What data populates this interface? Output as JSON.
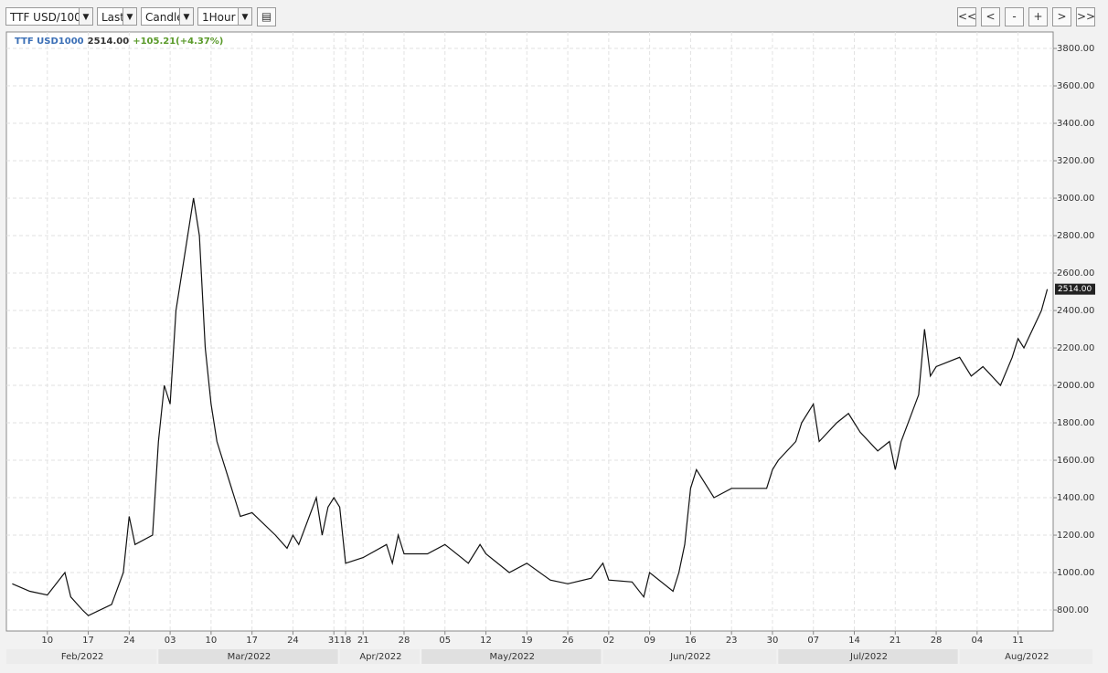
{
  "toolbar": {
    "symbol": "TTF USD/100",
    "price_field": "Last",
    "chart_style": "Candle",
    "interval": "1Hour",
    "buttons": [
      "<<",
      "<",
      "-",
      "+",
      ">",
      ">>"
    ]
  },
  "chart_data": {
    "type": "line",
    "title": "TTF USD1000",
    "last_price": {
      "value": 2514,
      "label": "2514.00"
    },
    "change": "+105.21(+4.37%)",
    "x": [
      "2022-02-04",
      "2022-02-07",
      "2022-02-10",
      "2022-02-13",
      "2022-02-14",
      "2022-02-16",
      "2022-02-17",
      "2022-02-21",
      "2022-02-23",
      "2022-02-24",
      "2022-02-25",
      "2022-02-28",
      "2022-03-01",
      "2022-03-02",
      "2022-03-03",
      "2022-03-04",
      "2022-03-07",
      "2022-03-08",
      "2022-03-09",
      "2022-03-10",
      "2022-03-11",
      "2022-03-14",
      "2022-03-15",
      "2022-03-17",
      "2022-03-21",
      "2022-03-23",
      "2022-03-24",
      "2022-03-25",
      "2022-03-28",
      "2022-03-29",
      "2022-03-30",
      "2022-03-31",
      "2022-04-01",
      "2022-04-18",
      "2022-04-21",
      "2022-04-25",
      "2022-04-26",
      "2022-04-27",
      "2022-04-28",
      "2022-05-02",
      "2022-05-05",
      "2022-05-09",
      "2022-05-11",
      "2022-05-12",
      "2022-05-16",
      "2022-05-19",
      "2022-05-23",
      "2022-05-26",
      "2022-05-30",
      "2022-06-01",
      "2022-06-02",
      "2022-06-06",
      "2022-06-08",
      "2022-06-09",
      "2022-06-13",
      "2022-06-14",
      "2022-06-15",
      "2022-06-16",
      "2022-06-17",
      "2022-06-20",
      "2022-06-23",
      "2022-06-27",
      "2022-06-29",
      "2022-06-30",
      "2022-07-01",
      "2022-07-04",
      "2022-07-05",
      "2022-07-07",
      "2022-07-08",
      "2022-07-11",
      "2022-07-13",
      "2022-07-14",
      "2022-07-15",
      "2022-07-18",
      "2022-07-20",
      "2022-07-21",
      "2022-07-22",
      "2022-07-25",
      "2022-07-26",
      "2022-07-27",
      "2022-07-28",
      "2022-08-01",
      "2022-08-03",
      "2022-08-05",
      "2022-08-08",
      "2022-08-10",
      "2022-08-11",
      "2022-08-12",
      "2022-08-15",
      "2022-08-16"
    ],
    "series": [
      {
        "name": "TTF USD1000",
        "color": "#111111",
        "values": [
          940,
          900,
          880,
          1000,
          870,
          800,
          770,
          830,
          1000,
          1300,
          1150,
          1200,
          1700,
          2000,
          1900,
          2400,
          3000,
          2800,
          2200,
          1900,
          1700,
          1400,
          1300,
          1320,
          1200,
          1130,
          1200,
          1150,
          1400,
          1200,
          1350,
          1400,
          1350,
          1050,
          1080,
          1150,
          1050,
          1200,
          1100,
          1100,
          1150,
          1050,
          1150,
          1100,
          1000,
          1050,
          960,
          940,
          970,
          1050,
          960,
          950,
          870,
          1000,
          900,
          1000,
          1150,
          1450,
          1550,
          1400,
          1450,
          1450,
          1450,
          1550,
          1600,
          1700,
          1800,
          1900,
          1700,
          1800,
          1850,
          1800,
          1750,
          1650,
          1700,
          1550,
          1700,
          1950,
          2300,
          2050,
          2100,
          2150,
          2050,
          2100,
          2000,
          2150,
          2250,
          2200,
          2400,
          2514
        ]
      }
    ],
    "xlim": [
      "2022-02-03",
      "2022-08-17"
    ],
    "xticks": [
      {
        "value": "2022-02-10",
        "label": "10"
      },
      {
        "value": "2022-02-17",
        "label": "17"
      },
      {
        "value": "2022-02-24",
        "label": "24"
      },
      {
        "value": "2022-03-03",
        "label": "03"
      },
      {
        "value": "2022-03-10",
        "label": "10"
      },
      {
        "value": "2022-03-17",
        "label": "17"
      },
      {
        "value": "2022-03-24",
        "label": "24"
      },
      {
        "value": "2022-03-31",
        "label": "31"
      },
      {
        "value": "2022-04-18",
        "label": "18"
      },
      {
        "value": "2022-04-21",
        "label": "21"
      },
      {
        "value": "2022-04-28",
        "label": "28"
      },
      {
        "value": "2022-05-05",
        "label": "05"
      },
      {
        "value": "2022-05-12",
        "label": "12"
      },
      {
        "value": "2022-05-19",
        "label": "19"
      },
      {
        "value": "2022-05-26",
        "label": "26"
      },
      {
        "value": "2022-06-02",
        "label": "02"
      },
      {
        "value": "2022-06-09",
        "label": "09"
      },
      {
        "value": "2022-06-16",
        "label": "16"
      },
      {
        "value": "2022-06-23",
        "label": "23"
      },
      {
        "value": "2022-06-30",
        "label": "30"
      },
      {
        "value": "2022-07-07",
        "label": "07"
      },
      {
        "value": "2022-07-14",
        "label": "14"
      },
      {
        "value": "2022-07-21",
        "label": "21"
      },
      {
        "value": "2022-07-28",
        "label": "28"
      },
      {
        "value": "2022-08-04",
        "label": "04"
      },
      {
        "value": "2022-08-11",
        "label": "11"
      }
    ],
    "months": [
      {
        "value": "2022-02-01",
        "label": "Feb/2022"
      },
      {
        "value": "2022-03-01",
        "label": "Mar/2022"
      },
      {
        "value": "2022-04-01",
        "label": "Apr/2022"
      },
      {
        "value": "2022-05-01",
        "label": "May/2022"
      },
      {
        "value": "2022-06-01",
        "label": "Jun/2022"
      },
      {
        "value": "2022-07-01",
        "label": "Jul/2022"
      },
      {
        "value": "2022-08-01",
        "label": "Aug/2022"
      }
    ],
    "ylim": [
      688,
      3888
    ],
    "yticks": [
      {
        "value": 800,
        "label": "800.00"
      },
      {
        "value": 1000,
        "label": "1000.00"
      },
      {
        "value": 1200,
        "label": "1200.00"
      },
      {
        "value": 1400,
        "label": "1400.00"
      },
      {
        "value": 1600,
        "label": "1600.00"
      },
      {
        "value": 1800,
        "label": "1800.00"
      },
      {
        "value": 2000,
        "label": "2000.00"
      },
      {
        "value": 2200,
        "label": "2200.00"
      },
      {
        "value": 2400,
        "label": "2400.00"
      },
      {
        "value": 2600,
        "label": "2600.00"
      },
      {
        "value": 2800,
        "label": "2800.00"
      },
      {
        "value": 3000,
        "label": "3000.00"
      },
      {
        "value": 3200,
        "label": "3200.00"
      },
      {
        "value": 3400,
        "label": "3400.00"
      },
      {
        "value": 3600,
        "label": "3600.00"
      },
      {
        "value": 3800,
        "label": "3800.00"
      }
    ],
    "grid": true,
    "title_color": "#3b6fb6",
    "change_color": "#5a9a2a"
  }
}
